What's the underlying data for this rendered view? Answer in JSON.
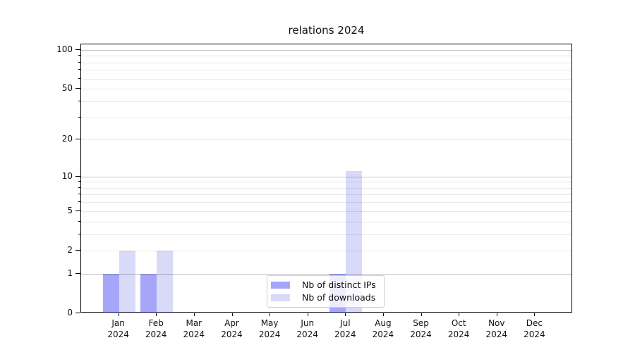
{
  "chart_data": {
    "type": "bar",
    "title": "relations 2024",
    "months": [
      "Jan",
      "Feb",
      "Mar",
      "Apr",
      "May",
      "Jun",
      "Jul",
      "Aug",
      "Sep",
      "Oct",
      "Nov",
      "Dec"
    ],
    "year": "2024",
    "series": [
      {
        "name": "Nb of distinct IPs",
        "color": "#a6a6f8",
        "fill": "rgba(0,0,235,0.35)",
        "values": [
          1,
          1,
          0,
          0,
          0,
          0,
          1,
          0,
          0,
          0,
          0,
          0
        ]
      },
      {
        "name": "Nb of downloads",
        "color": "#d9d9f8",
        "fill": "rgba(0,0,210,0.15)",
        "values": [
          2,
          2,
          0,
          0,
          0,
          0,
          11,
          0,
          0,
          0,
          0,
          0
        ]
      }
    ],
    "y_ticks": [
      0,
      1,
      2,
      5,
      10,
      20,
      50,
      100
    ],
    "y_major_gridlines": [
      1,
      10,
      100
    ],
    "y_minor_gridlines": [
      2,
      3,
      4,
      5,
      6,
      7,
      8,
      9,
      20,
      30,
      40,
      50,
      60,
      70,
      80,
      90
    ],
    "y_scale": "log(1+x)",
    "ylim": [
      0,
      110
    ],
    "grid": true,
    "legend_position": "lower center inside axes",
    "grid_colors": {
      "major": "#c3c3c3",
      "minor": "#e8e8e8"
    }
  }
}
